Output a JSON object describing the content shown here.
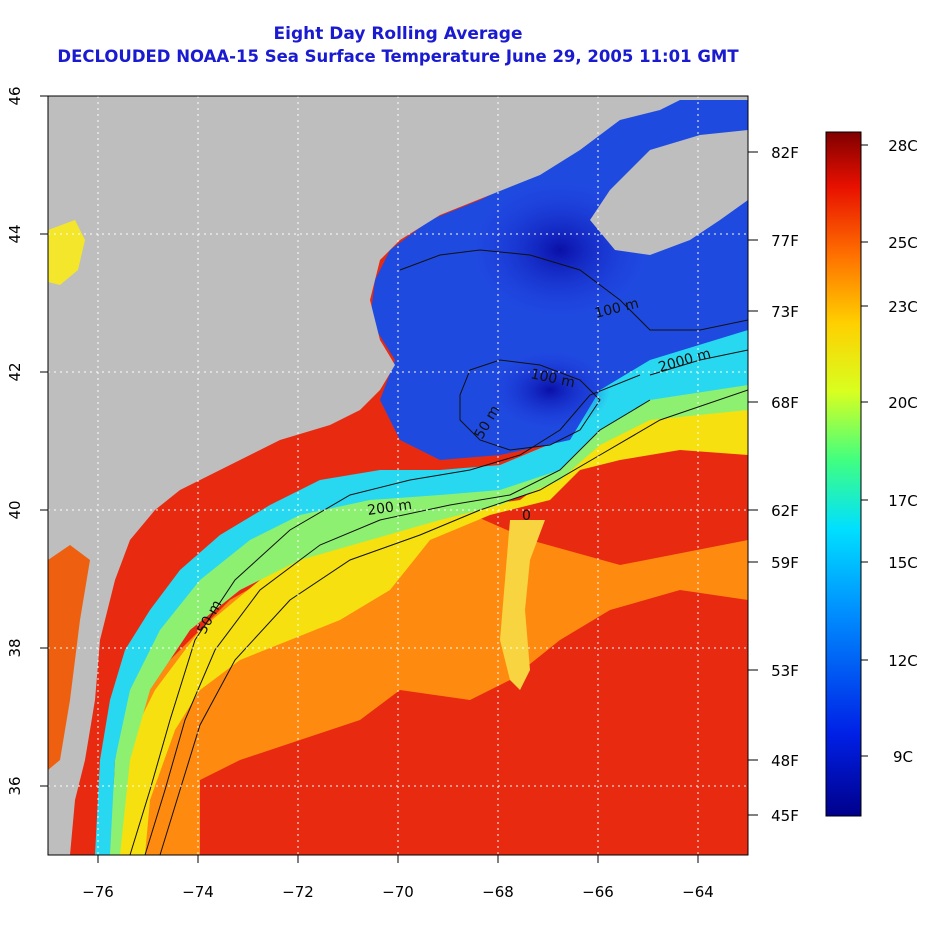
{
  "title": "Eight Day Rolling Average",
  "subtitle": "DECLOUDED NOAA-15 Sea Surface Temperature June 29, 2005 11:01 GMT",
  "map": {
    "lon_range": [
      -77,
      -63
    ],
    "lat_range": [
      35,
      46
    ],
    "lon_ticks": [
      -76,
      -74,
      -72,
      -70,
      -68,
      -66,
      -64
    ],
    "lat_ticks": [
      36,
      38,
      40,
      42,
      44,
      46
    ],
    "grid": true,
    "land_color": "#bebebe",
    "contour_labels": [
      "50 m",
      "200 m",
      "2000 m",
      "100 m",
      "50 m",
      "100 m",
      "0"
    ]
  },
  "scale": {
    "fahrenheit_ticks": [
      "82F",
      "77F",
      "73F",
      "68F",
      "62F",
      "59F",
      "53F",
      "48F",
      "45F"
    ],
    "celsius_ticks": [
      "28C",
      "25C",
      "23C",
      "20C",
      "17C",
      "15C",
      "12C",
      "9C"
    ]
  }
}
